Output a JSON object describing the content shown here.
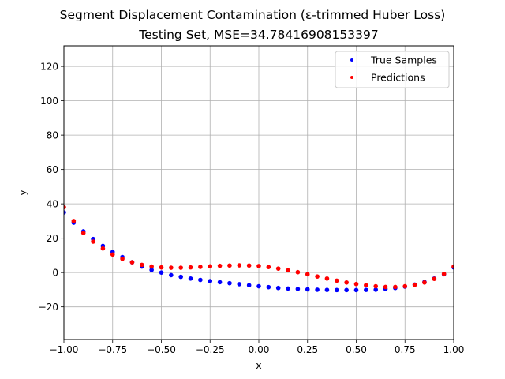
{
  "chart_data": {
    "type": "scatter",
    "title": "Segment Displacement Contamination (ε-trimmed Huber Loss)",
    "subtitle": "Testing Set, MSE=34.78416908153397",
    "xlabel": "x",
    "ylabel": "y",
    "xlim": [
      -1.0,
      1.0
    ],
    "ylim": [
      -39,
      132
    ],
    "xticks": [
      -1.0,
      -0.75,
      -0.5,
      -0.25,
      0.0,
      0.25,
      0.5,
      0.75,
      1.0
    ],
    "xtick_labels": [
      "−1.00",
      "−0.75",
      "−0.50",
      "−0.25",
      "0.00",
      "0.25",
      "0.50",
      "0.75",
      "1.00"
    ],
    "yticks": [
      -20,
      0,
      20,
      40,
      60,
      80,
      100,
      120
    ],
    "ytick_labels": [
      "−20",
      "0",
      "20",
      "40",
      "60",
      "80",
      "100",
      "120"
    ],
    "grid": true,
    "legend_position": "top-right",
    "series": [
      {
        "name": "True Samples",
        "color": "#0000ff",
        "x": [
          -1.0,
          -0.95,
          -0.9,
          -0.85,
          -0.8,
          -0.75,
          -0.7,
          -0.65,
          -0.6,
          -0.55,
          -0.5,
          -0.45,
          -0.4,
          -0.35,
          -0.3,
          -0.25,
          -0.2,
          -0.15,
          -0.1,
          -0.05,
          0.0,
          0.05,
          0.1,
          0.15,
          0.2,
          0.25,
          0.3,
          0.35,
          0.4,
          0.45,
          0.5,
          0.55,
          0.6,
          0.65,
          0.7,
          0.75,
          0.8,
          0.85,
          0.9,
          0.95,
          1.0
        ],
        "y": [
          35,
          29,
          24,
          19.5,
          15.5,
          12,
          9,
          6,
          3.5,
          1.5,
          0,
          -1.5,
          -2.5,
          -3.5,
          -4.3,
          -5,
          -5.6,
          -6.2,
          -6.8,
          -7.4,
          -8,
          -8.5,
          -9,
          -9.3,
          -9.6,
          -9.8,
          -10,
          -10.1,
          -10.2,
          -10.2,
          -10.2,
          -10.1,
          -10,
          -9.6,
          -9,
          -8.2,
          -7,
          -5.5,
          -3.5,
          -1,
          3
        ]
      },
      {
        "name": "Predictions",
        "color": "#ff0000",
        "x": [
          -1.0,
          -0.95,
          -0.9,
          -0.85,
          -0.8,
          -0.75,
          -0.7,
          -0.65,
          -0.6,
          -0.55,
          -0.5,
          -0.45,
          -0.4,
          -0.35,
          -0.3,
          -0.25,
          -0.2,
          -0.15,
          -0.1,
          -0.05,
          0.0,
          0.05,
          0.1,
          0.15,
          0.2,
          0.25,
          0.3,
          0.35,
          0.4,
          0.45,
          0.5,
          0.55,
          0.6,
          0.65,
          0.7,
          0.75,
          0.8,
          0.85,
          0.9,
          0.95,
          1.0
        ],
        "y": [
          38,
          30,
          23,
          18,
          14,
          10.5,
          8,
          6,
          4.5,
          3.5,
          3,
          2.8,
          2.8,
          3,
          3.3,
          3.6,
          3.9,
          4.1,
          4.2,
          4.1,
          3.8,
          3.2,
          2.3,
          1.3,
          0.2,
          -1,
          -2.3,
          -3.5,
          -4.7,
          -5.8,
          -6.7,
          -7.4,
          -8,
          -8.4,
          -8.4,
          -8,
          -7.2,
          -5.8,
          -3.7,
          -0.8,
          3.5
        ]
      }
    ]
  }
}
